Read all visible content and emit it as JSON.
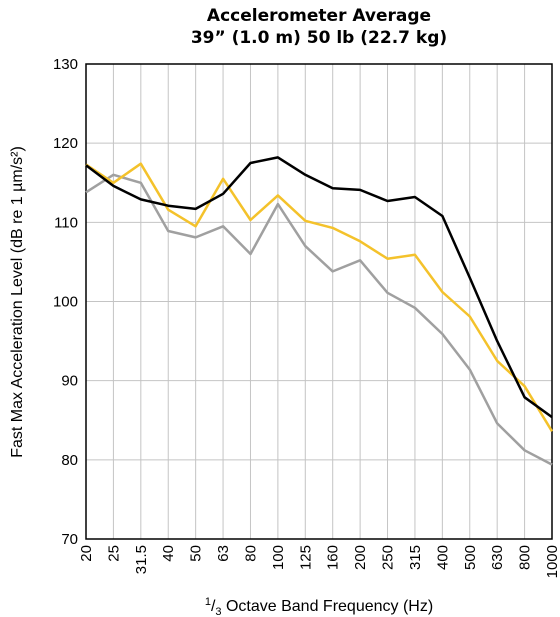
{
  "chart_data": {
    "type": "line",
    "title": "Accelerometer Average",
    "subtitle": "39” (1.0 m) 50 lb (22.7 kg)",
    "xlabel_sup": "1",
    "xlabel_sub": "3",
    "xlabel_rest": " Octave Band Frequency (Hz)",
    "ylabel": "Fast Max Acceleration Level (dB re 1 µm/s²)",
    "ylim": [
      70,
      130
    ],
    "yticks": [
      70,
      80,
      90,
      100,
      110,
      120,
      130
    ],
    "categories": [
      "20",
      "25",
      "31.5",
      "40",
      "50",
      "63",
      "80",
      "100",
      "125",
      "160",
      "200",
      "250",
      "315",
      "400",
      "500",
      "630",
      "800",
      "1000"
    ],
    "grid": true,
    "series": [
      {
        "color": "#000000",
        "values": [
          117.2,
          114.6,
          112.9,
          112.1,
          111.7,
          113.6,
          117.5,
          118.2,
          116.0,
          114.3,
          114.1,
          112.7,
          113.2,
          110.8,
          103.0,
          95.0,
          87.9,
          85.4
        ]
      },
      {
        "color": "#f4c22b",
        "values": [
          117.3,
          115.0,
          117.4,
          111.6,
          109.5,
          115.5,
          110.3,
          113.4,
          110.2,
          109.3,
          107.6,
          105.4,
          105.9,
          101.2,
          98.1,
          92.5,
          89.3,
          83.6
        ]
      },
      {
        "color": "#a0a0a0",
        "values": [
          113.8,
          116.0,
          115.0,
          108.9,
          108.1,
          109.5,
          106.0,
          112.3,
          107.0,
          103.8,
          105.2,
          101.1,
          99.2,
          95.9,
          91.4,
          84.6,
          81.2,
          79.4
        ]
      }
    ]
  }
}
